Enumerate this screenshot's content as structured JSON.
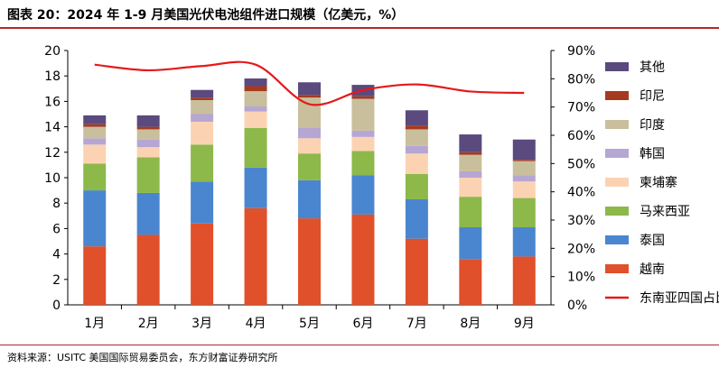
{
  "figure": {
    "title": "图表 20：2024 年 1-9 月美国光伏电池组件进口规模（亿美元，%）",
    "source": "资料来源：USITC 美国国际贸易委员会，东方财富证券研究所"
  },
  "chart_data": {
    "type": "bar",
    "stacked": true,
    "categories": [
      "1月",
      "2月",
      "3月",
      "4月",
      "5月",
      "6月",
      "7月",
      "8月",
      "9月"
    ],
    "ylim": [
      0,
      20
    ],
    "y_ticks": [
      "0",
      "2",
      "4",
      "6",
      "8",
      "10",
      "12",
      "14",
      "16",
      "18",
      "20"
    ],
    "y2lim": [
      0,
      90
    ],
    "y2_ticks": [
      "0%",
      "10%",
      "20%",
      "30%",
      "40%",
      "50%",
      "60%",
      "70%",
      "80%",
      "90%"
    ],
    "series": [
      {
        "name": "越南",
        "color": "#e0502a",
        "values": [
          4.6,
          5.5,
          6.4,
          7.6,
          6.8,
          7.1,
          5.2,
          3.6,
          3.8
        ]
      },
      {
        "name": "泰国",
        "color": "#4a86cf",
        "values": [
          4.4,
          3.3,
          3.3,
          3.2,
          3.0,
          3.1,
          3.1,
          2.5,
          2.3
        ]
      },
      {
        "name": "马来西亚",
        "color": "#8db84a",
        "values": [
          2.1,
          2.8,
          2.9,
          3.1,
          2.1,
          1.9,
          2.0,
          2.4,
          2.3
        ]
      },
      {
        "name": "柬埔寨",
        "color": "#fbd3b2",
        "values": [
          1.5,
          0.8,
          1.8,
          1.3,
          1.2,
          1.1,
          1.6,
          1.5,
          1.3
        ]
      },
      {
        "name": "韩国",
        "color": "#b6a6d3",
        "values": [
          0.5,
          0.6,
          0.6,
          0.4,
          0.8,
          0.5,
          0.6,
          0.5,
          0.5
        ]
      },
      {
        "name": "印度",
        "color": "#c9bf9c",
        "values": [
          0.9,
          0.8,
          1.1,
          1.2,
          2.4,
          2.5,
          1.3,
          1.3,
          1.1
        ]
      },
      {
        "name": "印尼",
        "color": "#a63a1f",
        "values": [
          0.2,
          0.2,
          0.2,
          0.4,
          0.2,
          0.2,
          0.3,
          0.2,
          0.1
        ]
      },
      {
        "name": "其他",
        "color": "#5a4a7e",
        "values": [
          0.7,
          0.9,
          0.6,
          0.6,
          1.0,
          0.9,
          1.2,
          1.4,
          1.6
        ]
      }
    ],
    "line": {
      "name": "东南亚四国占比",
      "color": "#e5191b",
      "axis": "right",
      "values": [
        85,
        83,
        84.5,
        85,
        71,
        76,
        78,
        75.5,
        75
      ]
    },
    "legend": [
      {
        "label": "其他",
        "kind": "box"
      },
      {
        "label": "印尼",
        "kind": "box"
      },
      {
        "label": "印度",
        "kind": "box"
      },
      {
        "label": "韩国",
        "kind": "box"
      },
      {
        "label": "柬埔寨",
        "kind": "box"
      },
      {
        "label": "马来西亚",
        "kind": "box"
      },
      {
        "label": "泰国",
        "kind": "box"
      },
      {
        "label": "越南",
        "kind": "box"
      },
      {
        "label": "东南亚四国占比",
        "kind": "line"
      }
    ]
  }
}
